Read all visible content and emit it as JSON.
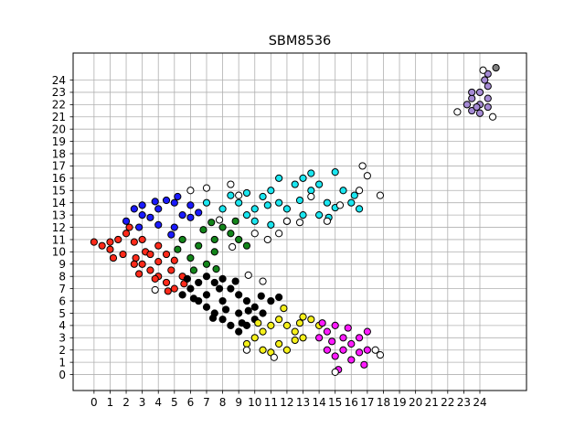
{
  "chart_data": {
    "type": "scatter",
    "title": "SBM8536",
    "xlabel": "",
    "ylabel": "",
    "xlim": [
      -1.3,
      26.9
    ],
    "ylim": [
      -1.3,
      26.2
    ],
    "xticks": [
      0,
      1,
      2,
      3,
      4,
      5,
      6,
      7,
      8,
      9,
      10,
      11,
      12,
      13,
      14,
      15,
      16,
      17,
      18,
      19,
      20,
      21,
      22,
      23,
      24
    ],
    "yticks": [
      0,
      1,
      2,
      3,
      4,
      5,
      6,
      7,
      8,
      9,
      10,
      11,
      12,
      13,
      14,
      15,
      16,
      17,
      18,
      19,
      20,
      21,
      22,
      23,
      24
    ],
    "grid": true,
    "legend": "none",
    "colors": {
      "red": "#ff2a1a",
      "blue": "#1a1aff",
      "green": "#12851a",
      "black": "#000000",
      "yellow": "#f5f01a",
      "magenta": "#ff1aff",
      "cyan": "#1ae6f0",
      "purple": "#a58ad4",
      "white": "#ffffff",
      "grey": "#808080"
    },
    "clusters": [
      {
        "color": "red",
        "points": [
          [
            0,
            10.8
          ],
          [
            0.5,
            10.5
          ],
          [
            1,
            10.2
          ],
          [
            1.5,
            11
          ],
          [
            2,
            11.5
          ],
          [
            2.5,
            10.8
          ],
          [
            1.8,
            9.8
          ],
          [
            2.6,
            9.5
          ],
          [
            3,
            9
          ],
          [
            3.5,
            8.5
          ],
          [
            4,
            8
          ],
          [
            4.5,
            7.5
          ],
          [
            5,
            7
          ],
          [
            3.2,
            10
          ],
          [
            4,
            9.2
          ],
          [
            4.8,
            8.5
          ],
          [
            5.5,
            8
          ],
          [
            2.2,
            12
          ],
          [
            3,
            11
          ],
          [
            4,
            10.5
          ],
          [
            1.2,
            9.5
          ],
          [
            2.8,
            8.2
          ],
          [
            3.8,
            7.8
          ],
          [
            4.6,
            6.8
          ],
          [
            5.6,
            7.4
          ],
          [
            1,
            10.8
          ],
          [
            3.5,
            9.8
          ],
          [
            4.5,
            9.8
          ],
          [
            5,
            9.3
          ],
          [
            2.5,
            9
          ]
        ]
      },
      {
        "color": "blue",
        "points": [
          [
            2,
            12.5
          ],
          [
            3,
            13
          ],
          [
            4,
            13.5
          ],
          [
            5,
            14
          ],
          [
            6,
            13.8
          ],
          [
            3,
            13.8
          ],
          [
            4,
            12.2
          ],
          [
            5,
            12
          ],
          [
            6,
            12.8
          ],
          [
            2.5,
            13.5
          ],
          [
            4.5,
            14.2
          ],
          [
            3.5,
            12.8
          ],
          [
            5.5,
            13
          ],
          [
            6.5,
            13.2
          ],
          [
            2.8,
            12
          ],
          [
            4.8,
            11.4
          ],
          [
            3.8,
            14.1
          ],
          [
            5.2,
            14.5
          ]
        ]
      },
      {
        "color": "green",
        "points": [
          [
            5.5,
            11
          ],
          [
            6.5,
            10.5
          ],
          [
            7.5,
            11
          ],
          [
            8.5,
            11.5
          ],
          [
            6,
            9.5
          ],
          [
            7,
            9
          ],
          [
            7.5,
            10
          ],
          [
            8,
            12
          ],
          [
            9,
            11
          ],
          [
            5.2,
            10.2
          ],
          [
            6.8,
            11.8
          ],
          [
            7.6,
            8.6
          ],
          [
            8.8,
            12.5
          ],
          [
            9.5,
            10.5
          ],
          [
            6.2,
            8.5
          ],
          [
            7.3,
            12.4
          ]
        ]
      },
      {
        "color": "black",
        "points": [
          [
            5.5,
            6.5
          ],
          [
            6,
            7
          ],
          [
            6.5,
            7.5
          ],
          [
            7,
            8
          ],
          [
            7.5,
            7.5
          ],
          [
            8,
            7.8
          ],
          [
            8.5,
            7
          ],
          [
            9,
            6.5
          ],
          [
            9.5,
            6
          ],
          [
            10,
            5.5
          ],
          [
            10.5,
            5
          ],
          [
            11,
            6
          ],
          [
            11.5,
            6.3
          ],
          [
            6.5,
            6
          ],
          [
            7,
            5.5
          ],
          [
            7.5,
            5
          ],
          [
            8,
            4.5
          ],
          [
            8.5,
            4
          ],
          [
            9,
            3.5
          ],
          [
            9.5,
            4
          ],
          [
            10,
            4.5
          ],
          [
            7,
            6.5
          ],
          [
            8,
            6
          ],
          [
            9,
            5
          ],
          [
            8.2,
            5.3
          ],
          [
            9.6,
            5.2
          ],
          [
            10.4,
            6.4
          ],
          [
            6.2,
            6.2
          ],
          [
            7.8,
            7
          ],
          [
            8.8,
            7.6
          ],
          [
            9.2,
            4.2
          ],
          [
            7.4,
            4.6
          ],
          [
            5.8,
            7.8
          ]
        ]
      },
      {
        "color": "yellow",
        "points": [
          [
            9.5,
            2.5
          ],
          [
            10,
            3
          ],
          [
            10.5,
            3.5
          ],
          [
            11,
            4
          ],
          [
            11.5,
            4.5
          ],
          [
            12,
            4
          ],
          [
            12.5,
            3.5
          ],
          [
            13,
            3
          ],
          [
            13.5,
            4.5
          ],
          [
            14,
            4
          ],
          [
            10.5,
            2
          ],
          [
            11,
            1.8
          ],
          [
            11.5,
            2.5
          ],
          [
            12,
            2
          ],
          [
            12.5,
            2.8
          ],
          [
            13,
            4.7
          ],
          [
            11.8,
            5.4
          ],
          [
            10.2,
            4.2
          ],
          [
            12.8,
            4.2
          ]
        ]
      },
      {
        "color": "magenta",
        "points": [
          [
            14,
            3
          ],
          [
            14.5,
            3.5
          ],
          [
            15,
            4
          ],
          [
            15.5,
            3
          ],
          [
            16,
            2.5
          ],
          [
            16.5,
            3
          ],
          [
            17,
            2
          ],
          [
            14.5,
            2
          ],
          [
            15,
            1.5
          ],
          [
            15.5,
            2
          ],
          [
            16,
            1.2
          ],
          [
            16.5,
            1.8
          ],
          [
            17,
            3.5
          ],
          [
            14.2,
            4.2
          ],
          [
            15.2,
            0.4
          ],
          [
            16.8,
            0.8
          ],
          [
            15.8,
            3.8
          ],
          [
            14.8,
            2.7
          ]
        ]
      },
      {
        "color": "cyan",
        "points": [
          [
            7,
            14
          ],
          [
            8,
            13.5
          ],
          [
            9,
            14
          ],
          [
            9.5,
            13
          ],
          [
            10,
            13.5
          ],
          [
            10.5,
            14.5
          ],
          [
            11,
            15
          ],
          [
            11.5,
            14
          ],
          [
            12,
            13.5
          ],
          [
            12.5,
            15.5
          ],
          [
            13,
            16
          ],
          [
            13.5,
            15
          ],
          [
            14,
            15.5
          ],
          [
            14.5,
            14
          ],
          [
            15,
            16.5
          ],
          [
            15.5,
            15
          ],
          [
            16,
            14
          ],
          [
            16.5,
            13.5
          ],
          [
            10,
            12.5
          ],
          [
            11,
            12.2
          ],
          [
            12,
            12.5
          ],
          [
            13,
            13
          ],
          [
            14,
            13
          ],
          [
            15,
            13.6
          ],
          [
            8.5,
            14.6
          ],
          [
            9.5,
            14.8
          ],
          [
            11.5,
            16
          ],
          [
            13.5,
            16.4
          ],
          [
            14.6,
            12.8
          ],
          [
            12.8,
            14.2
          ],
          [
            10.8,
            13.8
          ],
          [
            16.2,
            14.6
          ]
        ]
      },
      {
        "color": "purple",
        "points": [
          [
            23.5,
            21.5
          ],
          [
            24,
            22
          ],
          [
            24.5,
            22.5
          ],
          [
            23.5,
            22.5
          ],
          [
            24,
            23
          ],
          [
            24.5,
            23.5
          ],
          [
            23.5,
            23
          ],
          [
            24,
            21.3
          ],
          [
            24.5,
            21.8
          ],
          [
            24.3,
            24
          ],
          [
            24.5,
            24.5
          ],
          [
            23.8,
            21.8
          ],
          [
            23.2,
            22
          ]
        ]
      },
      {
        "color": "white",
        "points": [
          [
            6,
            15
          ],
          [
            7,
            15.2
          ],
          [
            8.5,
            15.5
          ],
          [
            9,
            14.6
          ],
          [
            10,
            11.5
          ],
          [
            10.8,
            11
          ],
          [
            11.5,
            11.5
          ],
          [
            12,
            12.5
          ],
          [
            12.8,
            12.4
          ],
          [
            14.5,
            12.5
          ],
          [
            15.3,
            13.8
          ],
          [
            16.5,
            15
          ],
          [
            17,
            16.2
          ],
          [
            16.7,
            17
          ],
          [
            17.8,
            14.6
          ],
          [
            9.6,
            8.1
          ],
          [
            10.5,
            7.6
          ],
          [
            3.8,
            6.9
          ],
          [
            17.5,
            2
          ],
          [
            17.8,
            1.6
          ],
          [
            9.5,
            2
          ],
          [
            11.2,
            1.4
          ],
          [
            15,
            0.2
          ],
          [
            22.6,
            21.4
          ],
          [
            24.8,
            21
          ],
          [
            24.2,
            24.8
          ],
          [
            13.5,
            14.5
          ],
          [
            8.6,
            10.4
          ],
          [
            7.8,
            12.6
          ]
        ]
      },
      {
        "color": "grey",
        "points": [
          [
            25,
            25
          ]
        ]
      }
    ]
  }
}
